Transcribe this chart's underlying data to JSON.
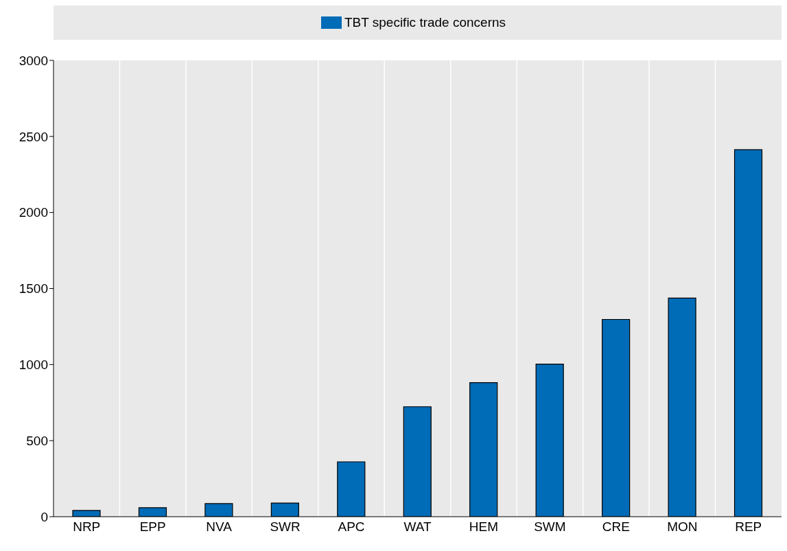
{
  "chart_data": {
    "type": "bar",
    "categories": [
      "NRP",
      "EPP",
      "NVA",
      "SWR",
      "APC",
      "WAT",
      "HEM",
      "SWM",
      "CRE",
      "MON",
      "REP"
    ],
    "series": [
      {
        "name": "TBT specific trade concerns",
        "color": "#006bb6",
        "values": [
          41,
          59,
          86,
          90,
          361,
          723,
          881,
          1003,
          1297,
          1437,
          2413
        ]
      }
    ],
    "ylim": [
      0,
      3000
    ],
    "yticks": [
      0,
      500,
      1000,
      1500,
      2000,
      2500,
      3000
    ],
    "grid": "x",
    "legend": "top"
  }
}
